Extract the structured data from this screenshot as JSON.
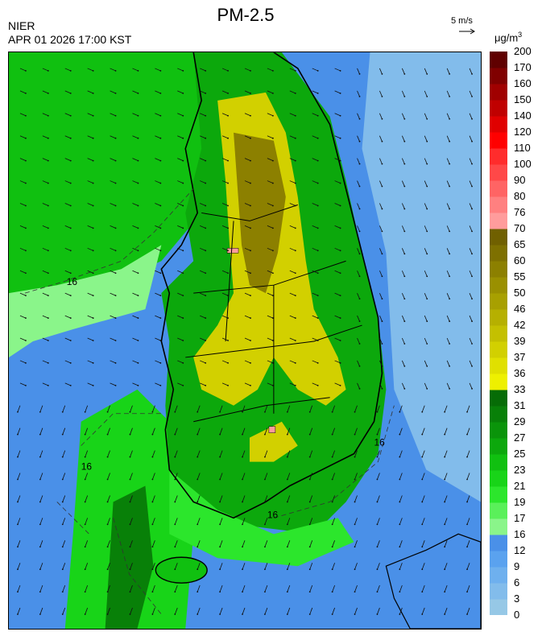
{
  "header": {
    "title": "PM-2.5",
    "organization": "NIER",
    "datetime": "APR 01 2026 17:00 KST",
    "wind_reference": "5 m/s",
    "unit_base": "μg/m",
    "unit_exp": "3"
  },
  "map": {
    "contour_label": "16",
    "wind_direction": "north-westerly flow turning southerly in the south"
  },
  "colorbar": {
    "levels": [
      "0",
      "3",
      "6",
      "9",
      "12",
      "16",
      "17",
      "19",
      "21",
      "23",
      "25",
      "27",
      "29",
      "31",
      "33",
      "36",
      "37",
      "39",
      "42",
      "46",
      "50",
      "55",
      "60",
      "65",
      "70",
      "76",
      "80",
      "90",
      "100",
      "110",
      "120",
      "140",
      "150",
      "160",
      "170",
      "200"
    ],
    "colors": [
      "#96c8e6",
      "#82bceb",
      "#6eb0ee",
      "#5aa2ef",
      "#4a90e8",
      "#8af58a",
      "#5af05a",
      "#2ce62c",
      "#18d418",
      "#10c010",
      "#0ca80c",
      "#0a940a",
      "#088008",
      "#066c06",
      "#eef000",
      "#e0e000",
      "#d2d000",
      "#c4c000",
      "#b6b000",
      "#a8a000",
      "#9a9000",
      "#8c8000",
      "#7e7000",
      "#706000",
      "#ff9c9c",
      "#ff8080",
      "#ff6464",
      "#ff4848",
      "#ff2c2c",
      "#ff0000",
      "#e00000",
      "#c00000",
      "#a00000",
      "#800000",
      "#600000"
    ]
  }
}
